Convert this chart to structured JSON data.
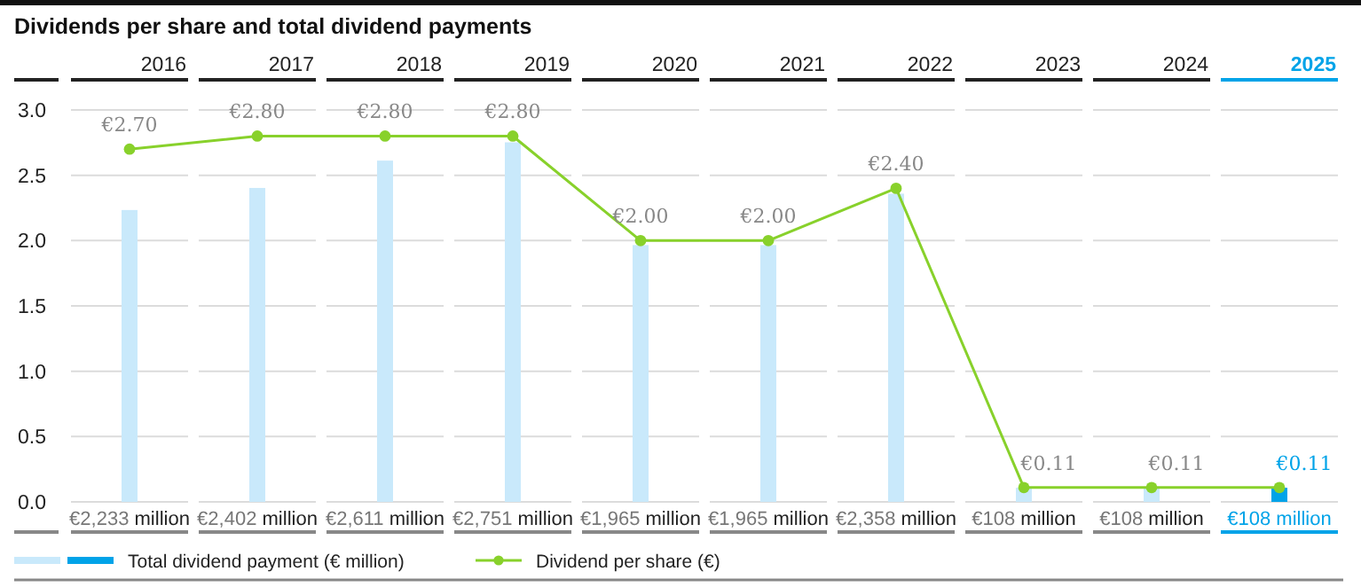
{
  "chart_data": {
    "type": "bar",
    "title": "Dividends per share and total dividend payments",
    "categories": [
      "2016",
      "2017",
      "2018",
      "2019",
      "2020",
      "2021",
      "2022",
      "2023",
      "2024",
      "2025"
    ],
    "series": [
      {
        "name": "Total dividend payment (€ million)",
        "axis": "y2",
        "colors": [
          "#c9e9fb",
          "#c9e9fb",
          "#c9e9fb",
          "#c9e9fb",
          "#c9e9fb",
          "#c9e9fb",
          "#c9e9fb",
          "#c9e9fb",
          "#c9e9fb",
          "#00a3e8"
        ],
        "values": [
          2233,
          2402,
          2611,
          2751,
          1965,
          1965,
          2358,
          108,
          108,
          108
        ],
        "value_labels": [
          "€2,233 million",
          "€2,402 million",
          "€2,611 million",
          "€2,751 million",
          "€1,965 million",
          "€1,965 million",
          "€2,358 million",
          "€108 million",
          "€108 million",
          "€108 million"
        ]
      },
      {
        "name": "Dividend per share (€)",
        "type": "line",
        "color": "#88d12b",
        "marker": "circle",
        "values": [
          2.7,
          2.8,
          2.8,
          2.8,
          2.0,
          2.0,
          2.4,
          0.11,
          0.11,
          0.11
        ],
        "value_labels": [
          "€2.70",
          "€2.80",
          "€2.80",
          "€2.80",
          "€2.00",
          "€2.00",
          "€2.40",
          "€0.11",
          "€0.11",
          "€0.11"
        ]
      }
    ],
    "ylim": [
      0,
      3
    ],
    "yticks": [
      {
        "value": 0,
        "label": "0.0"
      },
      0.5,
      {
        "value": 1,
        "label": "1.0"
      },
      1.5,
      {
        "value": 2,
        "label": "2.0"
      },
      2.5,
      {
        "value": 3,
        "label": "3.0"
      }
    ],
    "grid": "y",
    "legend": "bottom"
  }
}
